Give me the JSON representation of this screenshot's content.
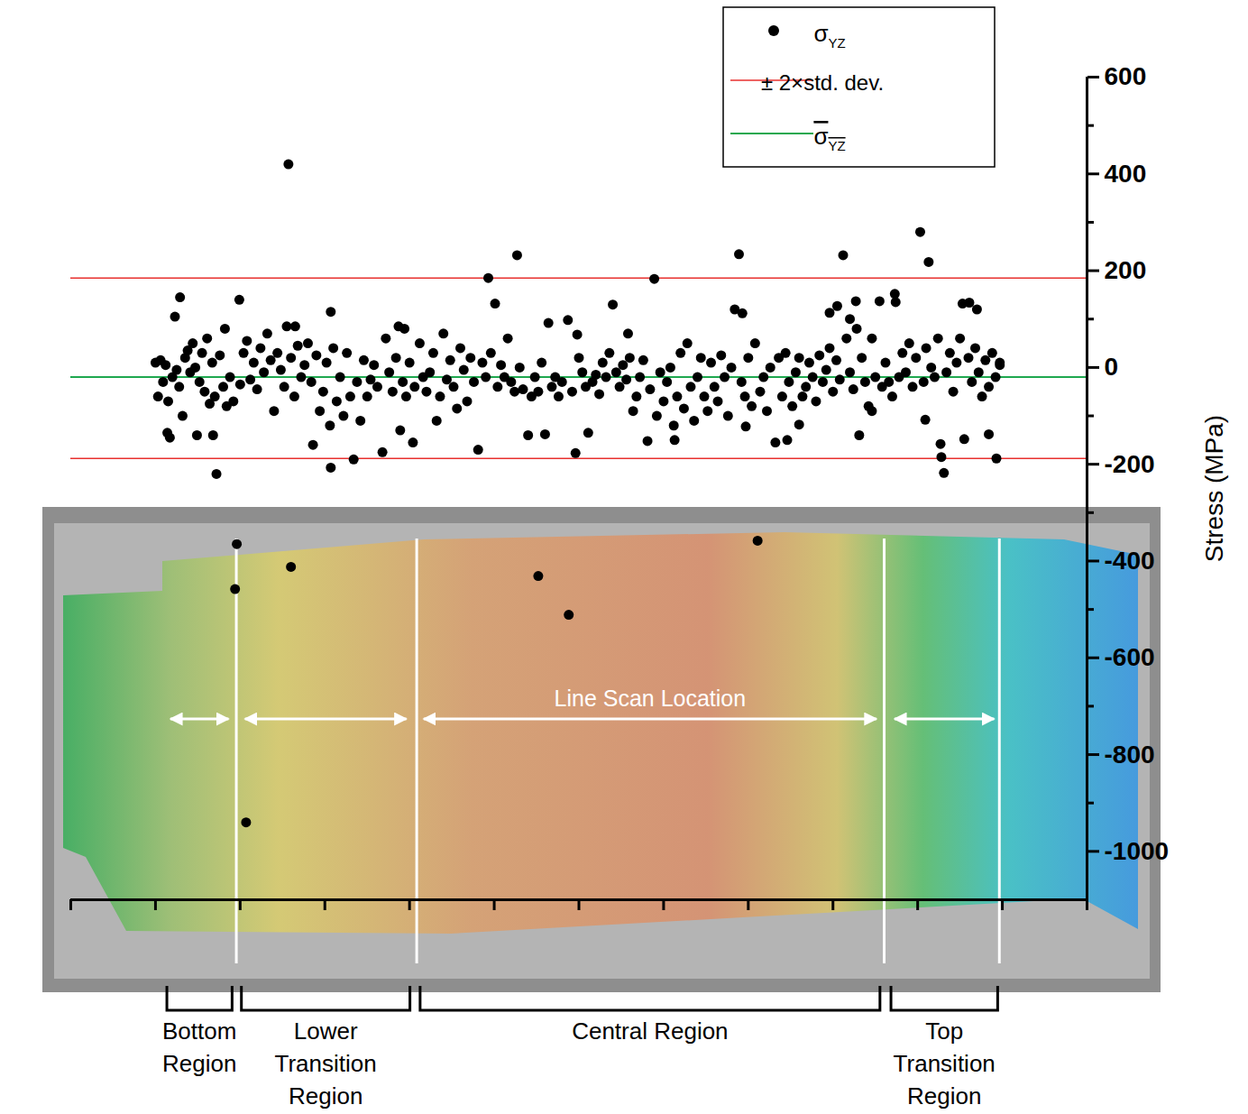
{
  "chart_data": {
    "type": "scatter",
    "series": [
      {
        "name": "σYZ",
        "color": "#000000",
        "marker": "circle",
        "x": [
          2.57,
          1.29,
          1.23,
          1.17,
          1.14,
          1.72,
          1.68,
          1.49,
          1.99,
          1.82,
          1.96,
          1.94,
          2.07,
          2.6,
          5.52,
          5.88,
          8.11,
          3.07,
          3.34,
          2.86,
          3.68,
          3.07,
          2.55,
          2.65,
          3.87,
          3.94,
          4.04,
          3.89,
          4.93,
          5.27,
          5.01,
          4.81,
          5.4,
          5.6,
          5.64,
          5.87,
          5.98,
          5.96,
          6.11,
          6.4,
          6.58,
          6.89,
          6.81,
          7.13,
          7.89,
          7.84,
          7.93,
          7.97,
          8.32,
          8.46,
          8.6,
          9.12,
          9.05,
          8.96,
          9.2,
          9.27,
          9.31,
          10.03,
          10.13,
          10.27,
          10.31,
          10.28,
          10.09,
          10.55,
          10.93,
          10.84,
          10.61,
          10.53,
          9.73,
          9.74,
          9.55,
          10.7,
          9.46,
          10.97,
          1.0,
          1.03,
          1.06,
          1.09,
          1.12,
          1.15,
          1.2,
          1.25,
          1.28,
          1.32,
          1.35,
          1.38,
          1.41,
          1.44,
          1.47,
          1.52,
          1.55,
          1.58,
          1.61,
          1.64,
          1.67,
          1.7,
          1.76,
          1.8,
          1.84,
          1.88,
          1.92,
          2.0,
          2.04,
          2.08,
          2.12,
          2.16,
          2.2,
          2.24,
          2.28,
          2.32,
          2.36,
          2.4,
          2.44,
          2.48,
          2.52,
          2.6,
          2.64,
          2.68,
          2.72,
          2.76,
          2.8,
          2.84,
          2.9,
          2.94,
          2.98,
          3.02,
          3.06,
          3.1,
          3.14,
          3.18,
          3.22,
          3.26,
          3.3,
          3.38,
          3.42,
          3.46,
          3.5,
          3.54,
          3.58,
          3.62,
          3.72,
          3.76,
          3.8,
          3.84,
          3.92,
          3.96,
          4.0,
          4.06,
          4.12,
          4.16,
          4.2,
          4.24,
          4.28,
          4.32,
          4.36,
          4.4,
          4.44,
          4.48,
          4.52,
          4.56,
          4.6,
          4.64,
          4.68,
          4.72,
          4.76,
          4.86,
          4.9,
          4.96,
          5.04,
          5.08,
          5.12,
          5.16,
          5.2,
          5.24,
          5.3,
          5.34,
          5.44,
          5.48,
          5.52,
          5.56,
          5.68,
          5.72,
          5.76,
          5.8,
          5.92,
          6.0,
          6.04,
          6.08,
          6.16,
          6.2,
          6.24,
          6.28,
          6.32,
          6.36,
          6.44,
          6.48,
          6.52,
          6.56,
          6.6,
          6.64,
          6.68,
          6.72,
          6.76,
          6.84,
          6.92,
          6.96,
          7.0,
          7.04,
          7.08,
          7.12,
          7.16,
          7.2,
          7.24,
          7.28,
          7.32,
          7.36,
          7.4,
          7.44,
          7.48,
          7.52,
          7.56,
          7.6,
          7.64,
          7.68,
          7.72,
          7.76,
          7.8,
          7.92,
          7.96,
          8.0,
          8.04,
          8.08,
          8.14,
          8.18,
          8.22,
          8.26,
          8.36,
          8.4,
          8.44,
          8.48,
          8.52,
          8.56,
          8.6,
          8.64,
          8.68,
          8.72,
          8.76,
          8.8,
          8.84,
          8.88,
          8.92,
          8.96,
          9.0,
          9.04,
          9.08,
          9.16,
          9.2,
          9.24,
          9.28,
          9.34,
          9.38,
          9.42,
          9.46,
          9.5,
          9.58,
          9.62,
          9.66,
          9.7,
          9.78,
          9.82,
          9.86,
          9.9,
          9.94,
          9.98,
          10.07,
          10.1,
          10.16,
          10.2,
          10.24,
          10.34,
          10.38,
          10.42,
          10.46,
          10.5,
          10.6,
          10.64,
          10.68,
          10.72,
          10.76,
          10.8,
          10.84,
          10.88,
          10.92,
          10.97
        ],
        "values": [
          420,
          145,
          105,
          -145,
          -135,
          -220,
          -140,
          -140,
          140,
          80,
          -365,
          -458,
          -940,
          -412,
          -431,
          -511,
          -358,
          -207,
          -190,
          -160,
          -175,
          115,
          85,
          85,
          85,
          80,
          -155,
          -130,
          185,
          232,
          132,
          -170,
          -140,
          -138,
          92,
          98,
          68,
          -177,
          -135,
          130,
          70,
          183,
          -152,
          -150,
          234,
          120,
          112,
          -122,
          -155,
          -150,
          -118,
          232,
          127,
          113,
          100,
          137,
          -140,
          280,
          218,
          -158,
          -218,
          -185,
          -108,
          -148,
          -188,
          -138,
          134,
          132,
          152,
          135,
          137,
          120,
          -90,
          5,
          10,
          -60,
          15,
          -30,
          5,
          -70,
          -20,
          -5,
          -40,
          -100,
          20,
          35,
          -10,
          50,
          0,
          -30,
          30,
          -50,
          60,
          -75,
          10,
          -60,
          25,
          -40,
          -80,
          -20,
          -70,
          -35,
          30,
          55,
          -25,
          10,
          -45,
          40,
          -10,
          70,
          15,
          -90,
          30,
          -5,
          -40,
          20,
          -60,
          45,
          -20,
          5,
          50,
          -30,
          25,
          -90,
          -50,
          10,
          -120,
          40,
          -70,
          -20,
          -100,
          30,
          -60,
          -30,
          -110,
          15,
          -60,
          -25,
          5,
          -40,
          60,
          -10,
          -50,
          20,
          -30,
          -60,
          10,
          -40,
          50,
          -20,
          -50,
          -10,
          30,
          -110,
          -60,
          70,
          -25,
          15,
          -40,
          -85,
          40,
          -5,
          -70,
          20,
          -30,
          10,
          -20,
          30,
          -40,
          5,
          -20,
          60,
          -30,
          -50,
          0,
          -45,
          -60,
          -20,
          -50,
          10,
          -40,
          -20,
          -60,
          -30,
          -50,
          20,
          -10,
          -40,
          -30,
          -15,
          -55,
          10,
          -20,
          30,
          -10,
          -40,
          5,
          -25,
          20,
          -90,
          -60,
          -20,
          15,
          -45,
          -100,
          -10,
          -70,
          -30,
          0,
          -120,
          -60,
          30,
          -85,
          50,
          -40,
          -110,
          -20,
          20,
          -60,
          -90,
          10,
          -40,
          -70,
          25,
          -20,
          -100,
          0,
          -30,
          -60,
          20,
          -80,
          50,
          -50,
          -20,
          -90,
          0,
          20,
          -60,
          30,
          -30,
          -80,
          -10,
          20,
          -60,
          -40,
          10,
          -20,
          -70,
          25,
          -30,
          -5,
          40,
          -50,
          15,
          -25,
          60,
          -10,
          -45,
          80,
          20,
          -30,
          -80,
          60,
          -20,
          -40,
          10,
          -30,
          -60,
          -20,
          30,
          -10,
          50,
          -40,
          20,
          -30,
          40,
          0,
          -20,
          60,
          -10,
          30,
          -50,
          10,
          60,
          20,
          -30,
          40,
          -10,
          -60,
          15,
          -40,
          30,
          -20,
          10
        ]
      }
    ],
    "bounds": {
      "name": "± 2×std. dev.",
      "values": [
        -188,
        185
      ],
      "color": "#e8312f"
    },
    "mean": {
      "name": "σYZ",
      "value": -20,
      "color": "#1fa84f"
    },
    "y_label": "Stress (MPa)",
    "xlim": [
      0,
      12
    ],
    "xticks": [
      0,
      1,
      2,
      3,
      4,
      5,
      6,
      7,
      8,
      9,
      10,
      11,
      12
    ],
    "ylim": [
      -1100,
      600
    ],
    "yticks": [
      600,
      400,
      200,
      0,
      -200,
      -400,
      -600,
      -800,
      -1000
    ],
    "tick_labels": "y",
    "legend": "top-right",
    "region_boundaries": [
      1.96,
      4.09,
      9.61,
      10.97
    ],
    "regions": [
      {
        "name": "Bottom Region",
        "span": [
          1.14,
          1.91
        ]
      },
      {
        "name": "Lower Transition Region",
        "span": [
          2.02,
          4.01
        ]
      },
      {
        "name": "Central Region",
        "span": [
          4.13,
          9.56
        ]
      },
      {
        "name": "Top Transition Region",
        "span": [
          9.69,
          10.95
        ]
      }
    ],
    "annotation": "Line Scan Location"
  }
}
